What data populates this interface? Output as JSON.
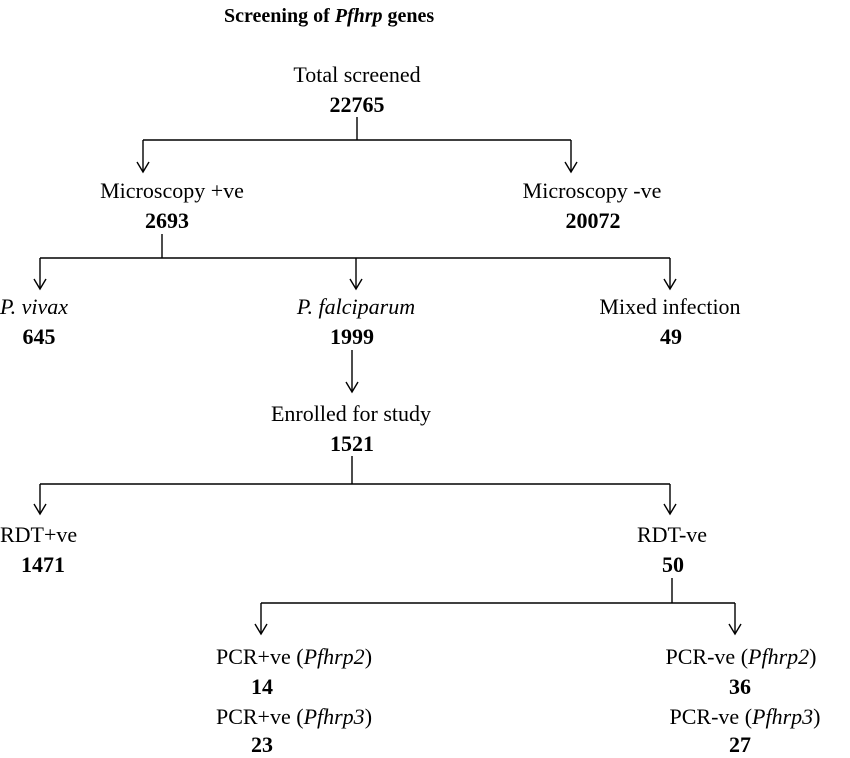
{
  "title": {
    "prefix": "Screening of ",
    "italic": "Pfhrp",
    "suffix": " genes"
  },
  "total": {
    "label": "Total screened",
    "value": "22765"
  },
  "microscopy_pos": {
    "label": "Microscopy +ve",
    "value": "2693"
  },
  "microscopy_neg": {
    "label": "Microscopy -ve",
    "value": "20072"
  },
  "vivax": {
    "label": "P. vivax",
    "value": "645"
  },
  "falciparum": {
    "label": "P. falciparum",
    "value": "1999"
  },
  "mixed": {
    "label": "Mixed infection",
    "value": "49"
  },
  "enrolled": {
    "label": "Enrolled for study",
    "value": "1521"
  },
  "rdt_pos": {
    "label": "RDT+ve",
    "value": "1471"
  },
  "rdt_neg": {
    "label": "RDT-ve",
    "value": "50"
  },
  "pcr_pos_2": {
    "prefix": "PCR+ve (",
    "gene": "Pfhrp2",
    "suffix": ")",
    "value": "14"
  },
  "pcr_pos_3": {
    "prefix": "PCR+ve (",
    "gene": "Pfhrp3",
    "suffix": ")",
    "value": "23"
  },
  "pcr_neg_2": {
    "prefix": "PCR-ve (",
    "gene": "Pfhrp2",
    "suffix": ")",
    "value": "36"
  },
  "pcr_neg_3": {
    "prefix": "PCR-ve (",
    "gene": "Pfhrp3",
    "suffix": ")",
    "value": "27"
  }
}
